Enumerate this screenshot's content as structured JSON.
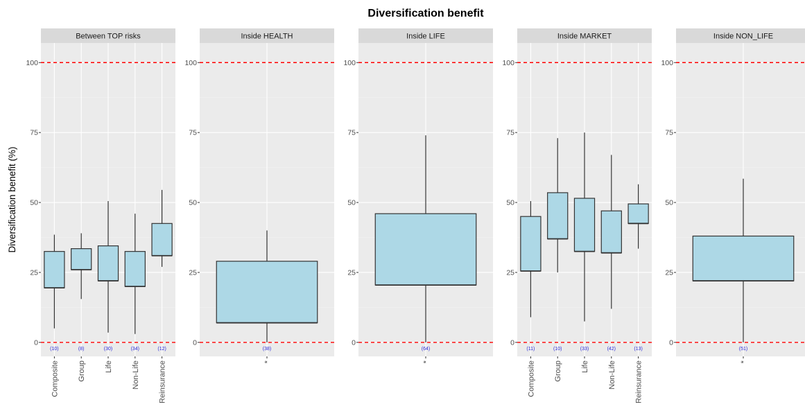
{
  "chart_data": {
    "type": "boxplot",
    "title": "Diversification benefit",
    "ylabel": "Diversification benefit (%)",
    "ylim": [
      -5,
      107
    ],
    "yticks": [
      0,
      25,
      50,
      75,
      100
    ],
    "ytick_labels": [
      "0",
      "25",
      "50",
      "75",
      "100"
    ],
    "reference_lines": {
      "values": [
        0,
        100
      ],
      "color": "#ff0000",
      "style": "dashed"
    },
    "box_fill": "#add8e6",
    "panel_background": "#ebebeb",
    "strip_background": "#d9d9d9",
    "count_color": "#2b2bd9",
    "panels": [
      {
        "name": "Between TOP risks",
        "categories": [
          "Composite",
          "Group",
          "Life",
          "Non-Life",
          "Reinsurance"
        ],
        "counts": [
          "(10)",
          "(8)",
          "(30)",
          "(34)",
          "(12)"
        ],
        "boxes": [
          {
            "min": 5,
            "q1": 19.5,
            "median": 19.5,
            "q3": 32.5,
            "max": 38.5
          },
          {
            "min": 15.5,
            "q1": 26,
            "median": 26,
            "q3": 33.5,
            "max": 39
          },
          {
            "min": 3.5,
            "q1": 22,
            "median": 22,
            "q3": 34.5,
            "max": 50.5
          },
          {
            "min": 3,
            "q1": 20,
            "median": 20,
            "q3": 32.5,
            "max": 46
          },
          {
            "min": 27,
            "q1": 31,
            "median": 31,
            "q3": 42.5,
            "max": 54.5
          }
        ]
      },
      {
        "name": "Inside HEALTH",
        "categories": [
          "*"
        ],
        "counts": [
          "(38)"
        ],
        "boxes": [
          {
            "min": 0,
            "q1": 7,
            "median": 7,
            "q3": 29,
            "max": 40
          }
        ]
      },
      {
        "name": "Inside LIFE",
        "categories": [
          "*"
        ],
        "counts": [
          "(64)"
        ],
        "boxes": [
          {
            "min": 0,
            "q1": 20.5,
            "median": 20.5,
            "q3": 46,
            "max": 74
          }
        ]
      },
      {
        "name": "Inside MARKET",
        "categories": [
          "Composite",
          "Group",
          "Life",
          "Non-Life",
          "Reinsurance"
        ],
        "counts": [
          "(11)",
          "(10)",
          "(33)",
          "(42)",
          "(13)"
        ],
        "boxes": [
          {
            "min": 9,
            "q1": 25.5,
            "median": 25.5,
            "q3": 45,
            "max": 50.5
          },
          {
            "min": 25,
            "q1": 37,
            "median": 37,
            "q3": 53.5,
            "max": 73
          },
          {
            "min": 7.5,
            "q1": 32.5,
            "median": 32.5,
            "q3": 51.5,
            "max": 75
          },
          {
            "min": 12,
            "q1": 32,
            "median": 32,
            "q3": 47,
            "max": 67
          },
          {
            "min": 33.5,
            "q1": 42.5,
            "median": 42.5,
            "q3": 49.5,
            "max": 56.5
          }
        ]
      },
      {
        "name": "Inside NON_LIFE",
        "categories": [
          "*"
        ],
        "counts": [
          "(51)"
        ],
        "boxes": [
          {
            "min": 0,
            "q1": 22,
            "median": 22,
            "q3": 38,
            "max": 58.5
          }
        ]
      }
    ]
  }
}
